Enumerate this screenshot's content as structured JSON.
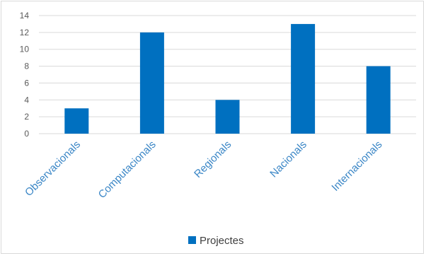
{
  "chart_data": {
    "type": "bar",
    "categories": [
      "Observacionals",
      "Computacionals",
      "Regionals",
      "Nacionals",
      "Internacionals"
    ],
    "series": [
      {
        "name": "Projectes",
        "values": [
          3,
          12,
          4,
          13,
          8
        ]
      }
    ],
    "ylim": [
      0,
      14
    ],
    "yticks": [
      0,
      2,
      4,
      6,
      8,
      10,
      12,
      14
    ],
    "grid": true,
    "legend": "bottom",
    "colors": {
      "bar": "#0070c0",
      "category_labels": "#3a86c6",
      "gridline": "#d9d9d9",
      "tick_labels": "#595959"
    }
  }
}
